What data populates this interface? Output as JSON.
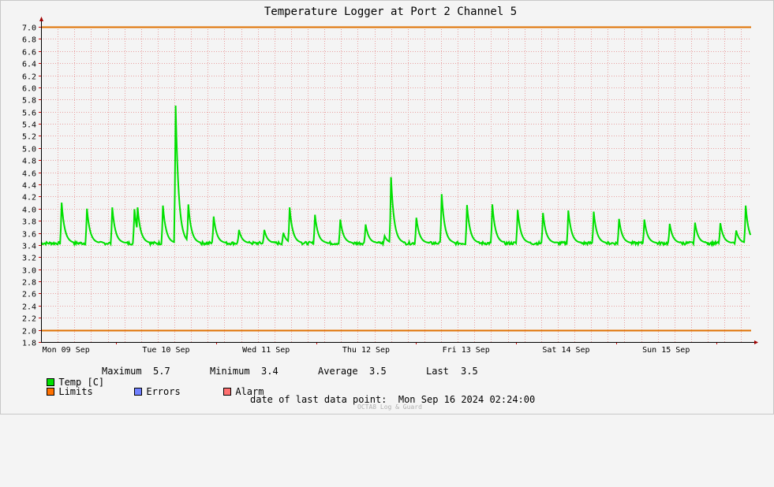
{
  "chart_data": {
    "type": "line",
    "title": "Temperature Logger at Port 2 Channel 5",
    "ylim": [
      1.8,
      7.0
    ],
    "y_ticks": [
      "1.8",
      "2.0",
      "2.2",
      "2.4",
      "2.6",
      "2.8",
      "3.0",
      "3.2",
      "3.4",
      "3.6",
      "3.8",
      "4.0",
      "4.2",
      "4.4",
      "4.6",
      "4.8",
      "5.0",
      "5.2",
      "5.4",
      "5.6",
      "5.8",
      "6.0",
      "6.2",
      "6.4",
      "6.6",
      "6.8",
      "7.0"
    ],
    "x_day_labels": [
      "Mon 09 Sep",
      "Tue 10 Sep",
      "Wed 11 Sep",
      "Thu 12 Sep",
      "Fri 13 Sep",
      "Sat 14 Sep",
      "Sun 15 Sep"
    ],
    "x_range_hours": [
      0,
      170.4
    ],
    "grid": true,
    "limits": {
      "upper": 7.0,
      "lower": 2.0,
      "color": "#e07000"
    },
    "series": [
      {
        "name": "Temp [C]",
        "color": "#00e000",
        "baseline": 3.43,
        "spikes": [
          {
            "t": 6.5,
            "peak": 4.1
          },
          {
            "t": 14.5,
            "peak": 4.0
          },
          {
            "t": 22.5,
            "peak": 4.02
          },
          {
            "t": 29.5,
            "peak": 3.99
          },
          {
            "t": 30.5,
            "peak": 4.02
          },
          {
            "t": 38.5,
            "peak": 4.05
          },
          {
            "t": 42.5,
            "peak": 5.7
          },
          {
            "t": 46.5,
            "peak": 4.07
          },
          {
            "t": 54.5,
            "peak": 3.87
          },
          {
            "t": 62.5,
            "peak": 3.65
          },
          {
            "t": 70.5,
            "peak": 3.65
          },
          {
            "t": 76.5,
            "peak": 3.6
          },
          {
            "t": 78.5,
            "peak": 4.02
          },
          {
            "t": 86.5,
            "peak": 3.9
          },
          {
            "t": 94.5,
            "peak": 3.82
          },
          {
            "t": 102.5,
            "peak": 3.74
          },
          {
            "t": 108.5,
            "peak": 3.55
          },
          {
            "t": 110.5,
            "peak": 4.52
          },
          {
            "t": 118.5,
            "peak": 3.85
          },
          {
            "t": 126.5,
            "peak": 4.24
          },
          {
            "t": 134.5,
            "peak": 4.06
          },
          {
            "t": 142.5,
            "peak": 4.07
          },
          {
            "t": 150.5,
            "peak": 3.98
          },
          {
            "t": 158.5,
            "peak": 3.93
          },
          {
            "t": 166.5,
            "peak": 3.97
          },
          {
            "t": 174.5,
            "peak": 3.95
          },
          {
            "t": 182.5,
            "peak": 3.83
          },
          {
            "t": 190.5,
            "peak": 3.82
          },
          {
            "t": 198.5,
            "peak": 3.75
          },
          {
            "t": 206.5,
            "peak": 3.77
          },
          {
            "t": 214.5,
            "peak": 3.76
          },
          {
            "t": 219.5,
            "peak": 3.64
          },
          {
            "t": 222.5,
            "peak": 4.05
          }
        ]
      }
    ]
  },
  "legend": {
    "temp_label": "Temp [C]",
    "max_label": "Maximum",
    "max_value": "5.7",
    "min_label": "Minimum",
    "min_value": "3.4",
    "avg_label": "Average",
    "avg_value": "3.5",
    "last_label": "Last",
    "last_value": "3.5",
    "limits_label": "Limits",
    "errors_label": "Errors",
    "alarm_label": "Alarm",
    "colors": {
      "temp": "#00e000",
      "limits": "#ff7000",
      "errors": "#7080ff",
      "alarm": "#ff7070"
    }
  },
  "footer": {
    "last_point_label": "date of last data point:",
    "last_point_value": "Mon Sep 16 2024 02:24:00",
    "watermark": "OCTA8 Log & Guard"
  }
}
